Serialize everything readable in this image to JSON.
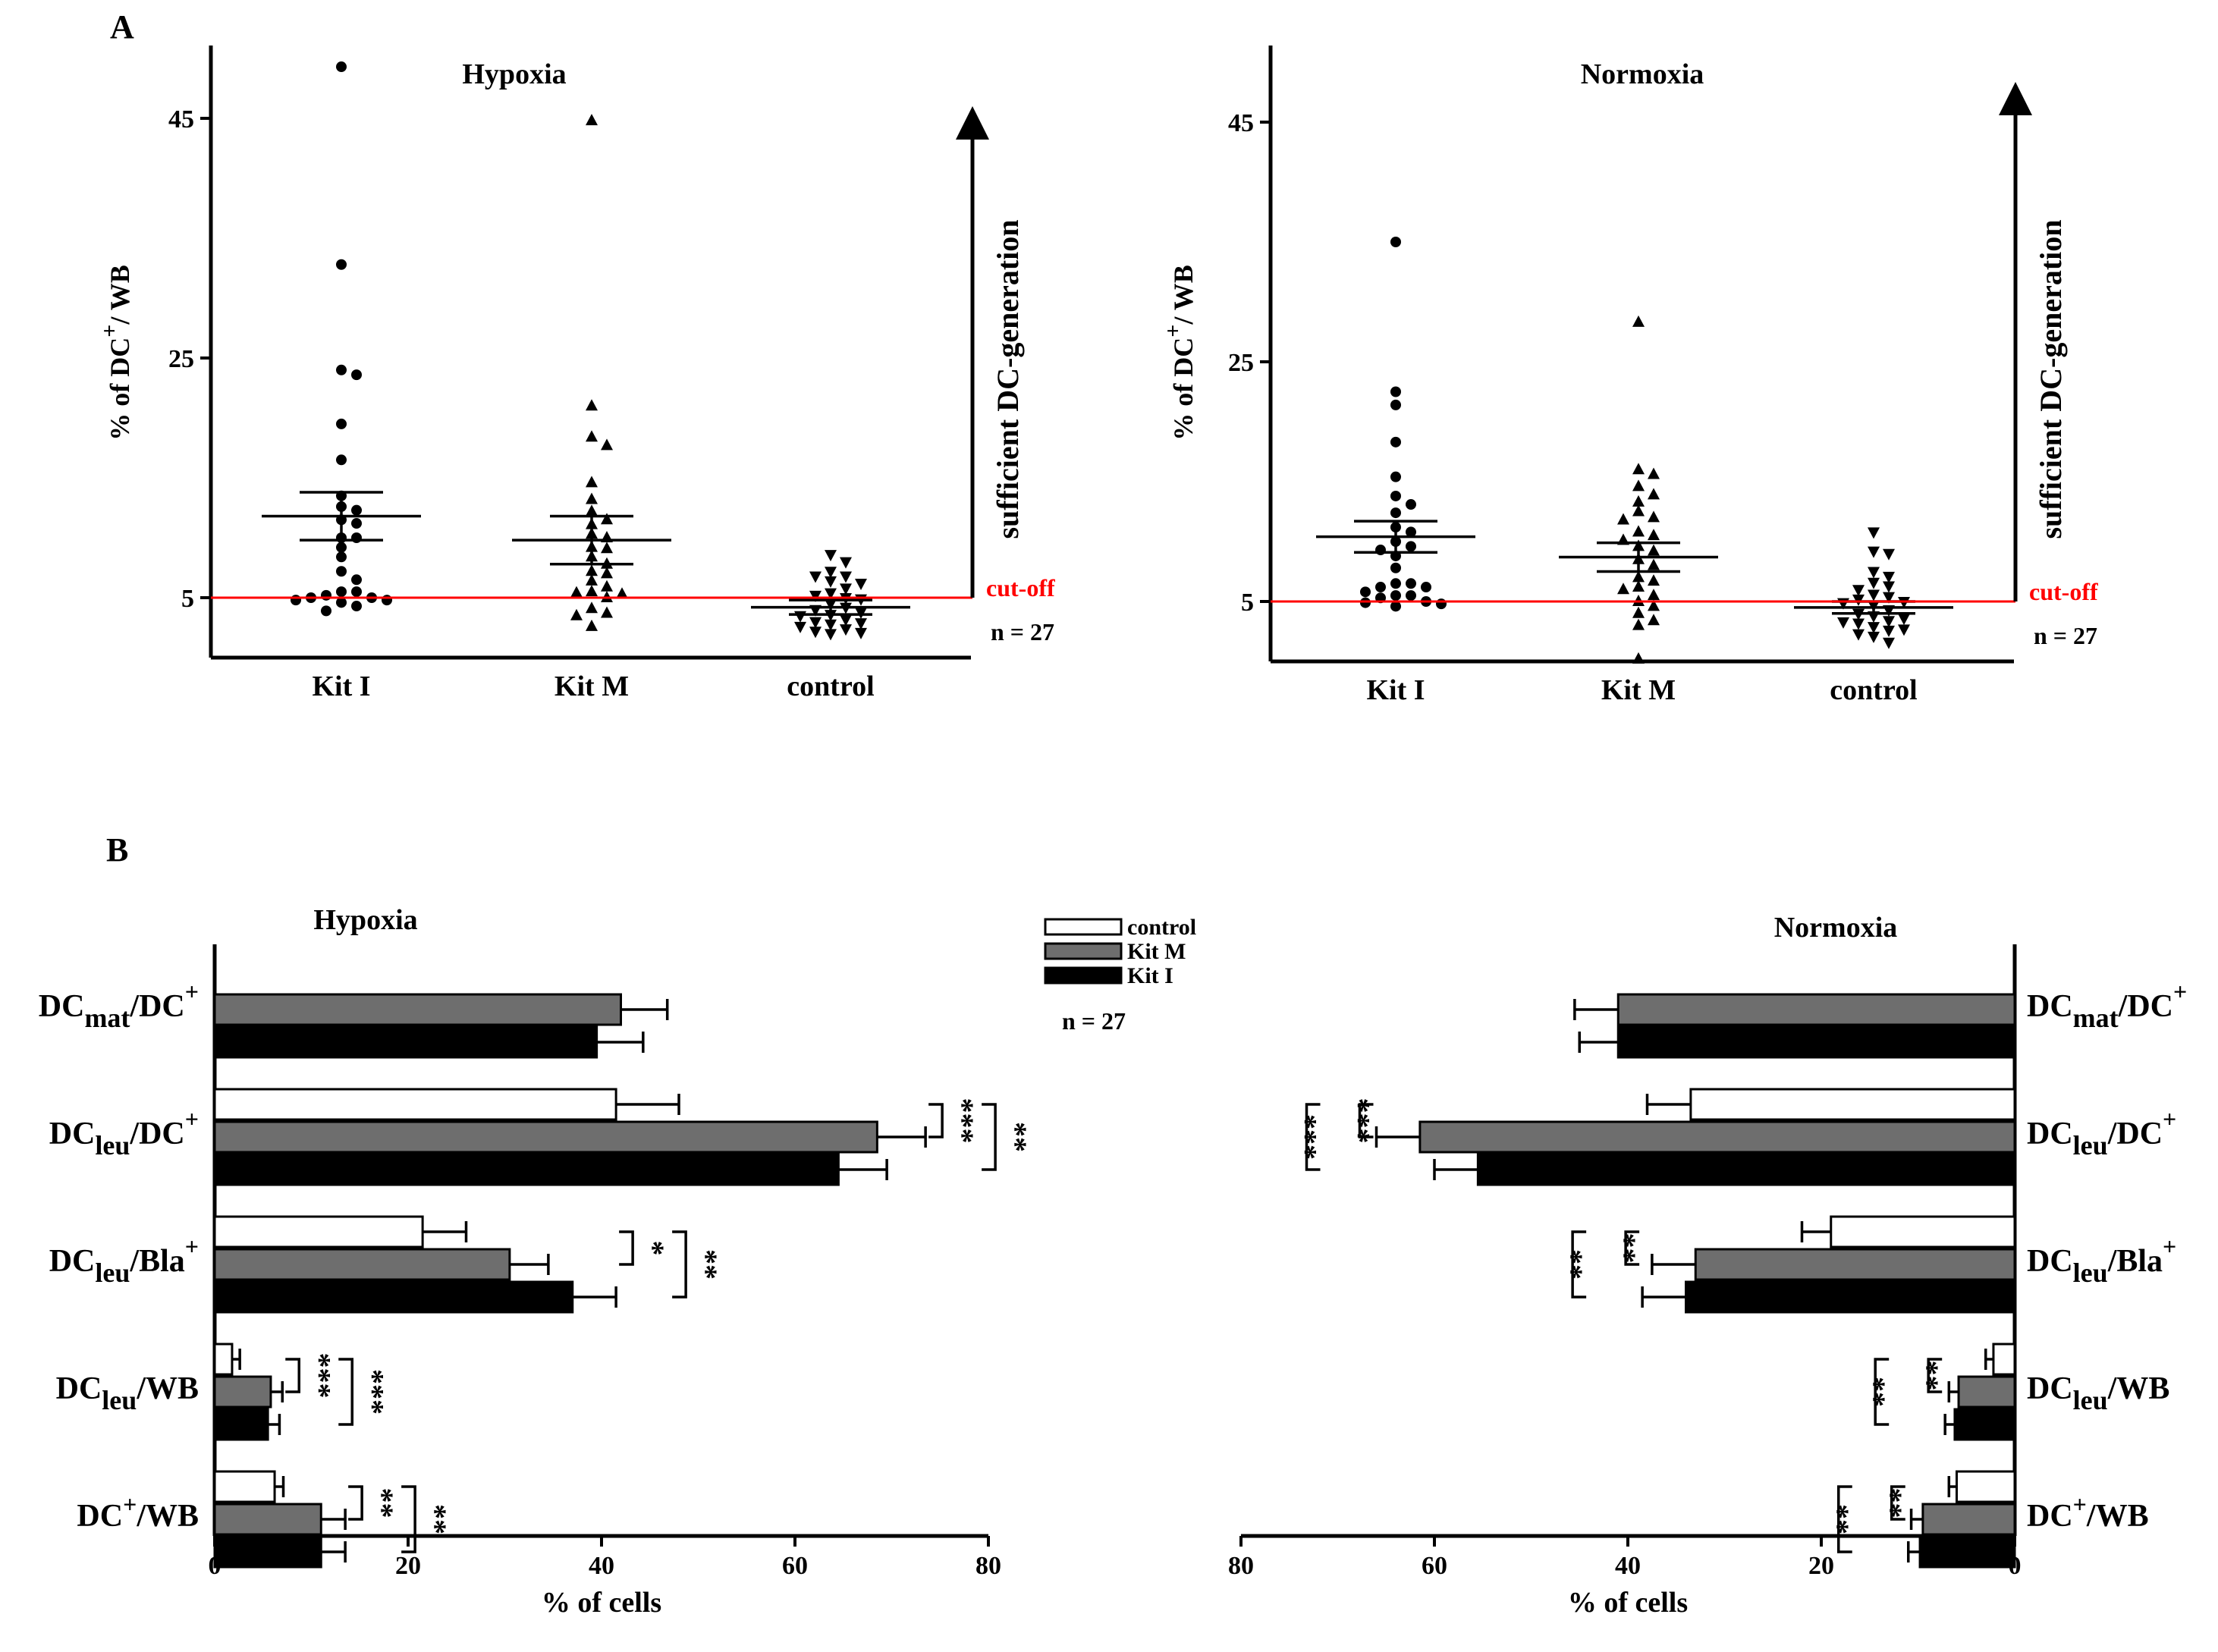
{
  "panel_a_label": "A",
  "panel_b_label": "B",
  "chart_data": [
    {
      "type": "scatter",
      "panel": "A-left",
      "title": "Hypoxia",
      "ylabel": "% of DC+/ WB",
      "ylim": [
        0,
        50
      ],
      "yticks": [
        5,
        25,
        45
      ],
      "categories": [
        "Kit I",
        "Kit M",
        "control"
      ],
      "series": [
        {
          "name": "Kit I",
          "marker": "circle",
          "mean": 11.8,
          "sem": 2.0,
          "values": [
            49.3,
            32.8,
            24.0,
            23.6,
            19.5,
            16.5,
            13.5,
            12.6,
            12.3,
            11.5,
            11.2,
            10.0,
            10.0,
            9.2,
            8.4,
            7.2,
            6.5,
            5.5,
            5.5,
            5.2,
            5.0,
            5.0,
            4.8,
            4.8,
            4.6,
            4.3,
            3.9
          ]
        },
        {
          "name": "Kit M",
          "marker": "triangle-up",
          "mean": 9.8,
          "sem": 2.0,
          "values": [
            44.8,
            21.0,
            18.4,
            17.7,
            14.6,
            13.2,
            12.2,
            11.5,
            11.1,
            10.3,
            10.0,
            9.2,
            9.1,
            8.4,
            7.8,
            7.2,
            7.0,
            6.4,
            5.9,
            5.5,
            5.4,
            5.3,
            5.0,
            4.1,
            3.7,
            3.5,
            2.6
          ]
        },
        {
          "name": "control",
          "marker": "triangle-down",
          "mean": 4.2,
          "sem": 0.6,
          "values": [
            8.6,
            8.0,
            7.2,
            6.8,
            6.8,
            6.4,
            6.2,
            5.8,
            5.4,
            5.2,
            5.0,
            4.9,
            4.5,
            4.2,
            4.0,
            3.8,
            3.6,
            3.5,
            3.2,
            3.0,
            2.9,
            2.8,
            2.6,
            2.4,
            2.2,
            2.1,
            2.0
          ]
        }
      ],
      "cutoff": {
        "value": 5,
        "label": "cut-off",
        "color": "#ff0000"
      },
      "arrow_label": "sufficient DC-generation",
      "n_label": "n = 27"
    },
    {
      "type": "scatter",
      "panel": "A-right",
      "title": "Normoxia",
      "ylabel": "% of DC+/ WB",
      "ylim": [
        0,
        50
      ],
      "yticks": [
        5,
        25,
        45
      ],
      "categories": [
        "Kit I",
        "Kit M",
        "control"
      ],
      "series": [
        {
          "name": "Kit I",
          "marker": "circle",
          "mean": 10.4,
          "sem": 1.3,
          "values": [
            35.0,
            22.5,
            21.4,
            18.3,
            15.4,
            13.8,
            13.1,
            12.4,
            11.2,
            10.8,
            10.0,
            9.6,
            9.3,
            8.8,
            7.8,
            6.5,
            6.5,
            6.2,
            6.2,
            5.8,
            5.5,
            5.5,
            5.3,
            5.0,
            4.9,
            4.8,
            4.6
          ]
        },
        {
          "name": "Kit M",
          "marker": "triangle-up",
          "mean": 8.7,
          "sem": 1.2,
          "values": [
            28.3,
            16.0,
            15.6,
            14.6,
            13.9,
            13.3,
            12.5,
            12.0,
            11.8,
            10.8,
            10.5,
            10.1,
            9.6,
            9.2,
            8.5,
            8.0,
            7.0,
            6.7,
            6.2,
            6.0,
            5.5,
            5.0,
            4.6,
            4.0,
            3.4,
            3.0,
            0.2
          ]
        },
        {
          "name": "control",
          "marker": "triangle-down",
          "mean": 4.5,
          "sem": 0.5,
          "values": [
            10.8,
            9.2,
            9.0,
            7.5,
            7.1,
            6.6,
            6.3,
            6.0,
            5.6,
            5.4,
            5.2,
            5.0,
            4.9,
            4.7,
            4.3,
            4.0,
            3.8,
            3.6,
            3.4,
            3.3,
            3.2,
            2.9,
            2.7,
            2.6,
            2.3,
            2.1,
            1.6
          ]
        }
      ],
      "cutoff": {
        "value": 5,
        "label": "cut-off",
        "color": "#ff0000"
      },
      "arrow_label": "sufficient DC-generation",
      "n_label": "n = 27"
    },
    {
      "type": "bar",
      "panel": "B-left",
      "orientation": "horizontal",
      "title": "Hypoxia",
      "xlabel": "% of cells",
      "xlim": [
        0,
        80
      ],
      "xticks": [
        0,
        20,
        40,
        60,
        80
      ],
      "categories": [
        {
          "base": "DC",
          "sub": "mat",
          "rest": "/DC",
          "sup": "+"
        },
        {
          "base": "DC",
          "sub": "leu",
          "rest": "/DC",
          "sup": "+"
        },
        {
          "base": "DC",
          "sub": "leu",
          "rest": "/Bla",
          "sup": "+"
        },
        {
          "base": "DC",
          "sub": "leu",
          "rest": "/WB",
          "sup": ""
        },
        {
          "base": "DC",
          "sub": "",
          "rest": "/WB",
          "sup": "+",
          "sup_first": true
        }
      ],
      "series": [
        {
          "name": "control",
          "color": "#ffffff",
          "values": [
            null,
            41.5,
            21.5,
            1.8,
            6.2
          ],
          "errors": [
            null,
            6.5,
            4.5,
            0.8,
            0.9
          ]
        },
        {
          "name": "Kit M",
          "color": "#6e6e6e",
          "values": [
            42.0,
            68.5,
            30.5,
            5.8,
            11.0
          ],
          "errors": [
            4.8,
            5.0,
            4.0,
            1.2,
            2.5
          ]
        },
        {
          "name": "Kit I",
          "color": "#000000",
          "values": [
            39.5,
            64.5,
            37.0,
            5.5,
            11.0
          ],
          "errors": [
            4.8,
            5.0,
            4.5,
            1.2,
            2.5
          ]
        }
      ],
      "significance": [
        {
          "category": 1,
          "inner": "***",
          "outer": "**"
        },
        {
          "category": 2,
          "inner": "*",
          "outer": "**"
        },
        {
          "category": 3,
          "inner": "***",
          "outer": "***"
        },
        {
          "category": 4,
          "inner": "**",
          "outer": "**"
        }
      ],
      "legend": {
        "entries": [
          "control",
          "Kit M",
          "Kit I"
        ],
        "position": "top-center"
      },
      "n_label": "n = 27"
    },
    {
      "type": "bar",
      "panel": "B-right",
      "orientation": "horizontal-reversed",
      "title": "Normoxia",
      "xlabel": "% of cells",
      "xlim": [
        80,
        0
      ],
      "xticks": [
        80,
        60,
        40,
        20,
        0
      ],
      "categories": [
        {
          "base": "DC",
          "sub": "mat",
          "rest": "/DC",
          "sup": "+"
        },
        {
          "base": "DC",
          "sub": "leu",
          "rest": "/DC",
          "sup": "+"
        },
        {
          "base": "DC",
          "sub": "leu",
          "rest": "/Bla",
          "sup": "+"
        },
        {
          "base": "DC",
          "sub": "leu",
          "rest": "/WB",
          "sup": ""
        },
        {
          "base": "DC",
          "sub": "",
          "rest": "/WB",
          "sup": "+",
          "sup_first": true
        }
      ],
      "series": [
        {
          "name": "control",
          "color": "#ffffff",
          "values": [
            null,
            33.5,
            19.0,
            2.2,
            6.0
          ],
          "errors": [
            null,
            4.5,
            3.0,
            0.8,
            0.8
          ]
        },
        {
          "name": "Kit M",
          "color": "#6e6e6e",
          "values": [
            41.0,
            61.5,
            33.0,
            5.8,
            9.5
          ],
          "errors": [
            4.5,
            4.5,
            4.5,
            1.0,
            1.2
          ]
        },
        {
          "name": "Kit I",
          "color": "#000000",
          "values": [
            41.0,
            55.5,
            34.0,
            6.2,
            9.8
          ],
          "errors": [
            4.0,
            4.5,
            4.5,
            1.0,
            1.2
          ]
        }
      ],
      "significance": [
        {
          "category": 1,
          "inner": "***",
          "outer": "***"
        },
        {
          "category": 2,
          "inner": "**",
          "outer": "**"
        },
        {
          "category": 3,
          "inner": "**",
          "outer": "**"
        },
        {
          "category": 4,
          "inner": "**",
          "outer": "**"
        }
      ]
    }
  ]
}
